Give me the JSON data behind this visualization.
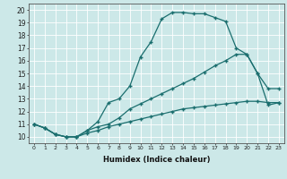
{
  "background_color": "#cce8e8",
  "grid_color": "#ffffff",
  "line_color": "#1a6e6e",
  "xlabel": "Humidex (Indice chaleur)",
  "xlim": [
    -0.5,
    23.5
  ],
  "ylim": [
    9.5,
    20.5
  ],
  "xticks": [
    0,
    1,
    2,
    3,
    4,
    5,
    6,
    7,
    8,
    9,
    10,
    11,
    12,
    13,
    14,
    15,
    16,
    17,
    18,
    19,
    20,
    21,
    22,
    23
  ],
  "yticks": [
    10,
    11,
    12,
    13,
    14,
    15,
    16,
    17,
    18,
    19,
    20
  ],
  "line1_x": [
    0,
    1,
    2,
    3,
    4,
    5,
    6,
    7,
    8,
    9,
    10,
    11,
    12,
    13,
    14,
    15,
    16,
    17,
    18,
    19,
    20,
    21,
    22,
    23
  ],
  "line1_y": [
    11.0,
    10.7,
    10.2,
    10.0,
    10.0,
    10.5,
    11.2,
    12.7,
    13.0,
    14.0,
    16.3,
    17.5,
    19.3,
    19.8,
    19.8,
    19.7,
    19.7,
    19.4,
    19.1,
    17.0,
    16.5,
    15.0,
    13.8,
    13.8
  ],
  "line2_x": [
    0,
    1,
    2,
    3,
    4,
    5,
    6,
    7,
    8,
    9,
    10,
    11,
    12,
    13,
    14,
    15,
    16,
    17,
    18,
    19,
    20,
    21,
    22,
    23
  ],
  "line2_y": [
    11.0,
    10.7,
    10.2,
    10.0,
    10.0,
    10.5,
    10.8,
    11.0,
    11.5,
    12.2,
    12.6,
    13.0,
    13.4,
    13.8,
    14.2,
    14.6,
    15.1,
    15.6,
    16.0,
    16.5,
    16.5,
    15.0,
    12.5,
    12.7
  ],
  "line3_x": [
    0,
    1,
    2,
    3,
    4,
    5,
    6,
    7,
    8,
    9,
    10,
    11,
    12,
    13,
    14,
    15,
    16,
    17,
    18,
    19,
    20,
    21,
    22,
    23
  ],
  "line3_y": [
    11.0,
    10.7,
    10.2,
    10.0,
    10.0,
    10.3,
    10.5,
    10.8,
    11.0,
    11.2,
    11.4,
    11.6,
    11.8,
    12.0,
    12.2,
    12.3,
    12.4,
    12.5,
    12.6,
    12.7,
    12.8,
    12.8,
    12.7,
    12.7
  ],
  "marker": "+",
  "markersize": 3,
  "linewidth": 0.9
}
